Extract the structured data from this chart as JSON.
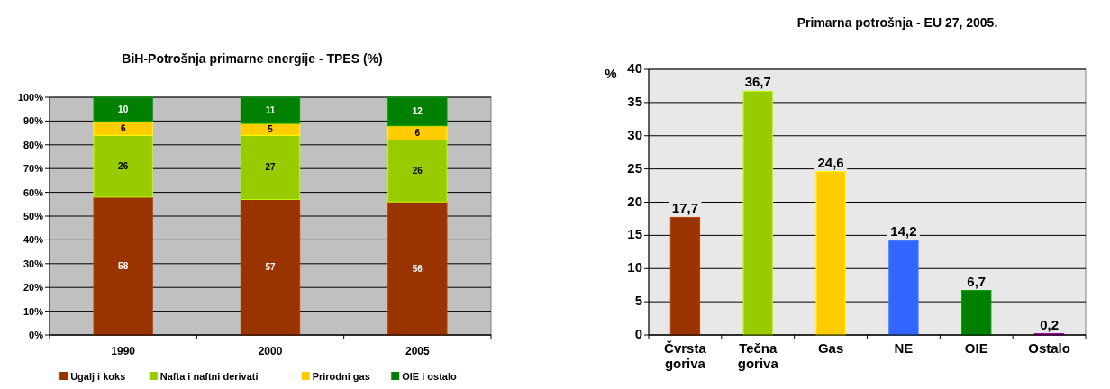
{
  "chart_data": [
    {
      "type": "bar",
      "title": "BiH-Potrošnja primarne energije - TPES (%)",
      "categories": [
        "1990",
        "2000",
        "2005"
      ],
      "stacked": true,
      "series": [
        {
          "name": "Ugalj i koks",
          "color": "#993300",
          "values": [
            58,
            57,
            56
          ]
        },
        {
          "name": "Nafta i naftni derivati",
          "color": "#99cc00",
          "values": [
            26,
            27,
            26
          ]
        },
        {
          "name": "Prirodni gas",
          "color": "#ffcc00",
          "values": [
            6,
            5,
            6
          ]
        },
        {
          "name": "OIE i ostalo",
          "color": "#008000",
          "values": [
            10,
            11,
            12
          ]
        }
      ],
      "ylim": [
        0,
        100
      ],
      "yticks": [
        {
          "value": 0,
          "label": "0%"
        },
        {
          "value": 10,
          "label": "10%"
        },
        {
          "value": 20,
          "label": "20%"
        },
        {
          "value": 30,
          "label": "30%"
        },
        {
          "value": 40,
          "label": "40%"
        },
        {
          "value": 50,
          "label": "50%"
        },
        {
          "value": 60,
          "label": "60%"
        },
        {
          "value": 70,
          "label": "70%"
        },
        {
          "value": 80,
          "label": "80%"
        },
        {
          "value": 90,
          "label": "90%"
        },
        {
          "value": 100,
          "label": "100%"
        }
      ],
      "grid": "y",
      "legend": "bottom",
      "data_labels": true
    },
    {
      "type": "bar",
      "title": "Primarna potrošnja - EU 27, 2005.",
      "ylabel": "%",
      "categories": [
        "Čvrsta goriva",
        "Tečna goriva",
        "Gas",
        "NE",
        "OIE",
        "Ostalo"
      ],
      "values": [
        17.7,
        36.7,
        24.6,
        14.2,
        6.7,
        0.2
      ],
      "colors": [
        "#993300",
        "#99cc00",
        "#ffcc00",
        "#3366ff",
        "#008000",
        "#800080"
      ],
      "value_labels": [
        "17,7",
        "36,7",
        "24,6",
        "14,2",
        "6,7",
        "0,2"
      ],
      "ylim": [
        0,
        40
      ],
      "yticks": [
        0,
        5,
        10,
        15,
        20,
        25,
        30,
        35,
        40
      ],
      "grid": "y"
    }
  ]
}
